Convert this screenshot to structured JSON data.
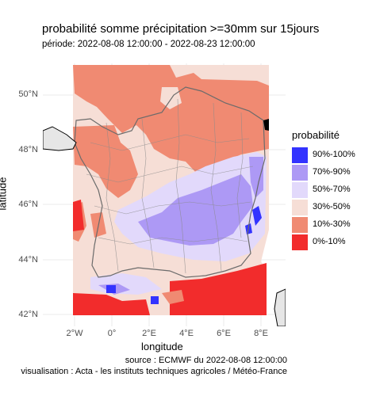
{
  "title": "probabilité somme précipitation >=30mm sur 15jours",
  "subtitle": "période: 2022-08-08 12:00:00 - 2022-08-23 12:00:00",
  "axes": {
    "xlabel": "longitude",
    "ylabel": "latitude",
    "x_ticks": [
      "2°W",
      "0°",
      "2°E",
      "4°E",
      "6°E",
      "8°E"
    ],
    "y_ticks": [
      "50°N",
      "48°N",
      "46°N",
      "44°N",
      "42°N"
    ]
  },
  "legend": {
    "title": "probabilité",
    "items": [
      {
        "label": "90%-100%",
        "color": "#3333ff"
      },
      {
        "label": "70%-90%",
        "color": "#ad99f5"
      },
      {
        "label": "50%-70%",
        "color": "#e2d9fb"
      },
      {
        "label": "30%-50%",
        "color": "#f6ded6"
      },
      {
        "label": "10%-30%",
        "color": "#f08a72"
      },
      {
        "label": "0%-10%",
        "color": "#f22c2c"
      }
    ]
  },
  "caption": {
    "source": "source : ECMWF du 2022-08-08 12:00:00",
    "visualisation": "visualisation : Acta - les instituts techniques agricoles / Météo-France"
  },
  "map": {
    "region": "France",
    "extent": {
      "lon": [
        -2.2,
        8.2
      ],
      "lat": [
        41.8,
        51.2
      ]
    },
    "regions": [
      {
        "name": "north",
        "category": "10%-30%"
      },
      {
        "name": "west-center",
        "category": "30%-50%"
      },
      {
        "name": "brittany-loire",
        "category": "10%-30%"
      },
      {
        "name": "southeast-alps",
        "category": "70%-90%"
      },
      {
        "name": "mediterranean-sea",
        "category": "0%-10%"
      },
      {
        "name": "biscay-sea",
        "category": "0%-10%"
      }
    ]
  }
}
